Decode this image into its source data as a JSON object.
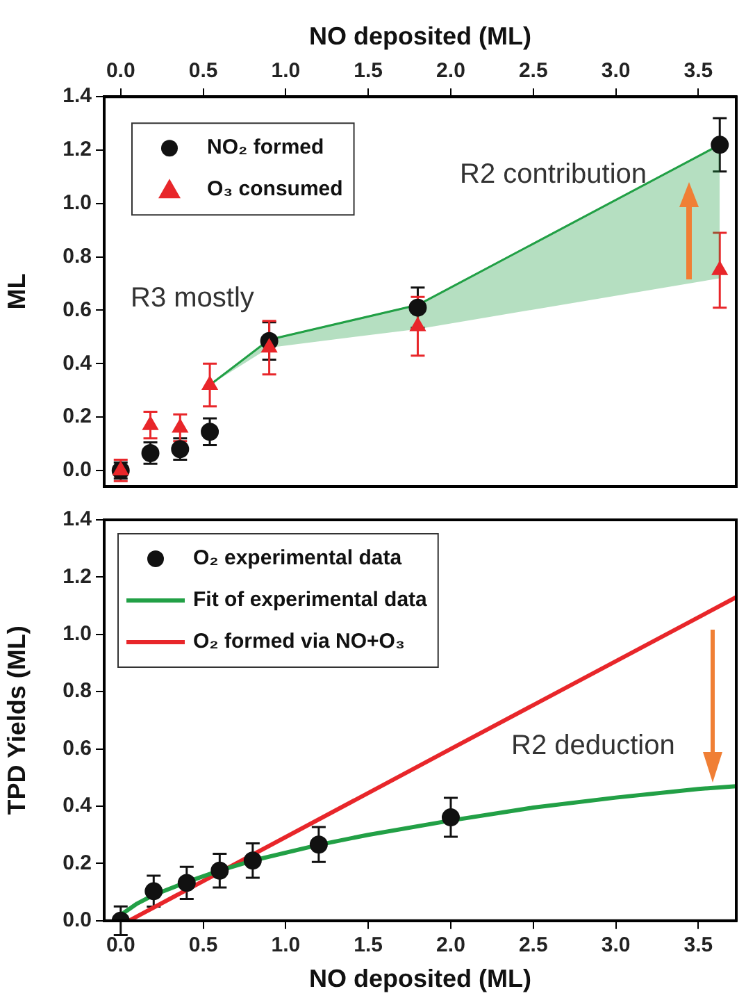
{
  "chart_data": [
    {
      "type": "scatter",
      "xlabel": "NO deposited (ML)",
      "ylabel": "ML",
      "xlim": [
        -0.1,
        3.73
      ],
      "xticks": [
        {
          "value": 0,
          "label": "0.0"
        },
        {
          "value": 0.5,
          "label": "0.5"
        },
        {
          "value": 1,
          "label": "1.0"
        },
        {
          "value": 1.5,
          "label": "1.5"
        },
        {
          "value": 2,
          "label": "2.0"
        },
        {
          "value": 2.5,
          "label": "2.5"
        },
        {
          "value": 3,
          "label": "3.0"
        },
        {
          "value": 3.5,
          "label": "3.5"
        }
      ],
      "ylim": [
        -0.06,
        1.4
      ],
      "yticks": [
        {
          "value": 0,
          "label": "0.0"
        },
        {
          "value": 0.2,
          "label": "0.2"
        },
        {
          "value": 0.4,
          "label": "0.4"
        },
        {
          "value": 0.6,
          "label": "0.6"
        },
        {
          "value": 0.8,
          "label": "0.8"
        },
        {
          "value": 1,
          "label": "1.0"
        },
        {
          "value": 1.2,
          "label": "1.2"
        },
        {
          "value": 1.4,
          "label": "1.4"
        }
      ],
      "legend": "top left",
      "grid": false,
      "annotations": [
        "R3 mostly",
        "R2 contribution"
      ],
      "series": [
        {
          "type": "line",
          "color": "#22a046",
          "x": [
            0.54,
            0.9,
            1.8,
            3.63
          ],
          "values": [
            0.32,
            0.49,
            0.62,
            1.22
          ],
          "lower": [
            0.32,
            0.46,
            0.53,
            0.72
          ],
          "upper": [
            0.32,
            0.49,
            0.62,
            1.22
          ]
        },
        {
          "name": "NO₂ formed",
          "type": "scatter",
          "marker": "circle",
          "color": "#111111",
          "x": [
            0.0,
            0.18,
            0.36,
            0.54,
            0.9,
            1.8,
            3.63
          ],
          "values": [
            0.0,
            0.065,
            0.08,
            0.145,
            0.485,
            0.61,
            1.22
          ],
          "errors": [
            0.03,
            0.04,
            0.04,
            0.05,
            0.07,
            0.075,
            0.1
          ]
        },
        {
          "name": "O₃ consumed",
          "type": "scatter",
          "marker": "triangle",
          "color": "#e8262a",
          "x": [
            0.0,
            0.18,
            0.36,
            0.54,
            0.9,
            1.8,
            3.63
          ],
          "values": [
            0.0,
            0.17,
            0.16,
            0.32,
            0.46,
            0.54,
            0.75
          ],
          "errors": [
            0.04,
            0.05,
            0.05,
            0.08,
            0.1,
            0.11,
            0.14
          ]
        }
      ]
    },
    {
      "type": "scatter",
      "xlabel": "NO deposited (ML)",
      "ylabel": "TPD Yields (ML)",
      "xlim": [
        -0.1,
        3.73
      ],
      "xticks": [
        {
          "value": 0,
          "label": "0.0"
        },
        {
          "value": 0.5,
          "label": "0.5"
        },
        {
          "value": 1,
          "label": "1.0"
        },
        {
          "value": 1.5,
          "label": "1.5"
        },
        {
          "value": 2,
          "label": "2.0"
        },
        {
          "value": 2.5,
          "label": "2.5"
        },
        {
          "value": 3,
          "label": "3.0"
        },
        {
          "value": 3.5,
          "label": "3.5"
        }
      ],
      "ylim": [
        0,
        1.4
      ],
      "yticks": [
        {
          "value": 0,
          "label": "0.0"
        },
        {
          "value": 0.2,
          "label": "0.2"
        },
        {
          "value": 0.4,
          "label": "0.4"
        },
        {
          "value": 0.6,
          "label": "0.6"
        },
        {
          "value": 0.8,
          "label": "0.8"
        },
        {
          "value": 1,
          "label": "1.0"
        },
        {
          "value": 1.2,
          "label": "1.2"
        },
        {
          "value": 1.4,
          "label": "1.4"
        }
      ],
      "legend": "top left",
      "grid": false,
      "annotations": [
        "R2 deduction"
      ],
      "series": [
        {
          "name": "O₂ experimental data",
          "type": "scatter",
          "marker": "circle",
          "color": "#111111",
          "x": [
            0.0,
            0.2,
            0.4,
            0.6,
            0.8,
            1.2,
            2.0
          ],
          "values": [
            0.0,
            0.103,
            0.132,
            0.175,
            0.21,
            0.266,
            0.361
          ],
          "errors": [
            0.05,
            0.054,
            0.056,
            0.059,
            0.06,
            0.061,
            0.068
          ]
        },
        {
          "name": "Fit of experimental data",
          "type": "line",
          "color": "#22a046",
          "x": [
            0.0,
            0.1,
            0.2,
            0.4,
            0.6,
            0.8,
            1.2,
            1.5,
            2.0,
            2.5,
            3.0,
            3.5,
            3.73
          ],
          "values": [
            0.02,
            0.06,
            0.09,
            0.135,
            0.175,
            0.21,
            0.265,
            0.3,
            0.35,
            0.395,
            0.43,
            0.46,
            0.47
          ]
        },
        {
          "name": "O₂ formed via NO+O₃",
          "type": "line",
          "color": "#e8262a",
          "x": [
            0.05,
            2.0,
            3.73
          ],
          "values": [
            0.0,
            0.6,
            1.13
          ]
        }
      ]
    }
  ]
}
